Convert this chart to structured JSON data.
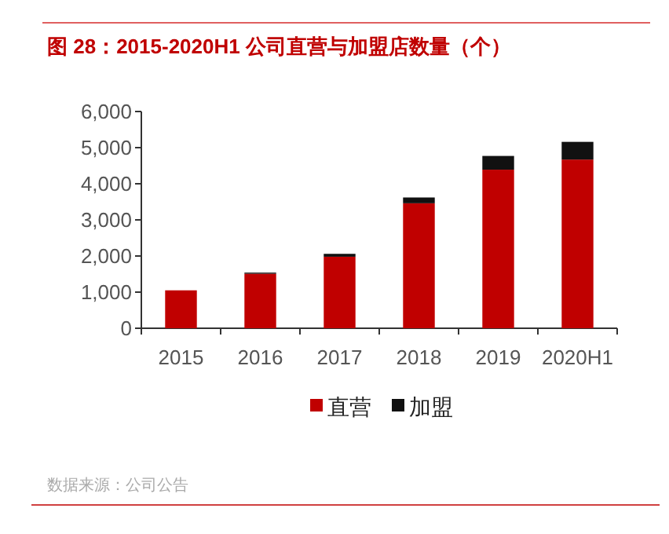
{
  "chart_data": {
    "type": "bar",
    "title": "图 28：2015-2020H1 公司直营与加盟店数量（个）",
    "annotations": [
      "数据来源：公司公告"
    ],
    "categories": [
      "2015",
      "2016",
      "2017",
      "2018",
      "2019",
      "2020H1"
    ],
    "stacked": true,
    "series": [
      {
        "name": "直营",
        "color": "#c00000",
        "values": [
          1050,
          1510,
          1980,
          3460,
          4390,
          4670
        ]
      },
      {
        "name": "加盟",
        "color": "#111111",
        "values": [
          0,
          30,
          80,
          160,
          380,
          490
        ]
      }
    ],
    "ylim": [
      0,
      6000
    ],
    "yticks": [
      {
        "value": 0,
        "label": "0"
      },
      {
        "value": 1000,
        "label": "1,000"
      },
      {
        "value": 2000,
        "label": "2,000"
      },
      {
        "value": 3000,
        "label": "3,000"
      },
      {
        "value": 4000,
        "label": "4,000"
      },
      {
        "value": 5000,
        "label": "5,000"
      },
      {
        "value": 6000,
        "label": "6,000"
      }
    ],
    "legend": "bottom"
  }
}
